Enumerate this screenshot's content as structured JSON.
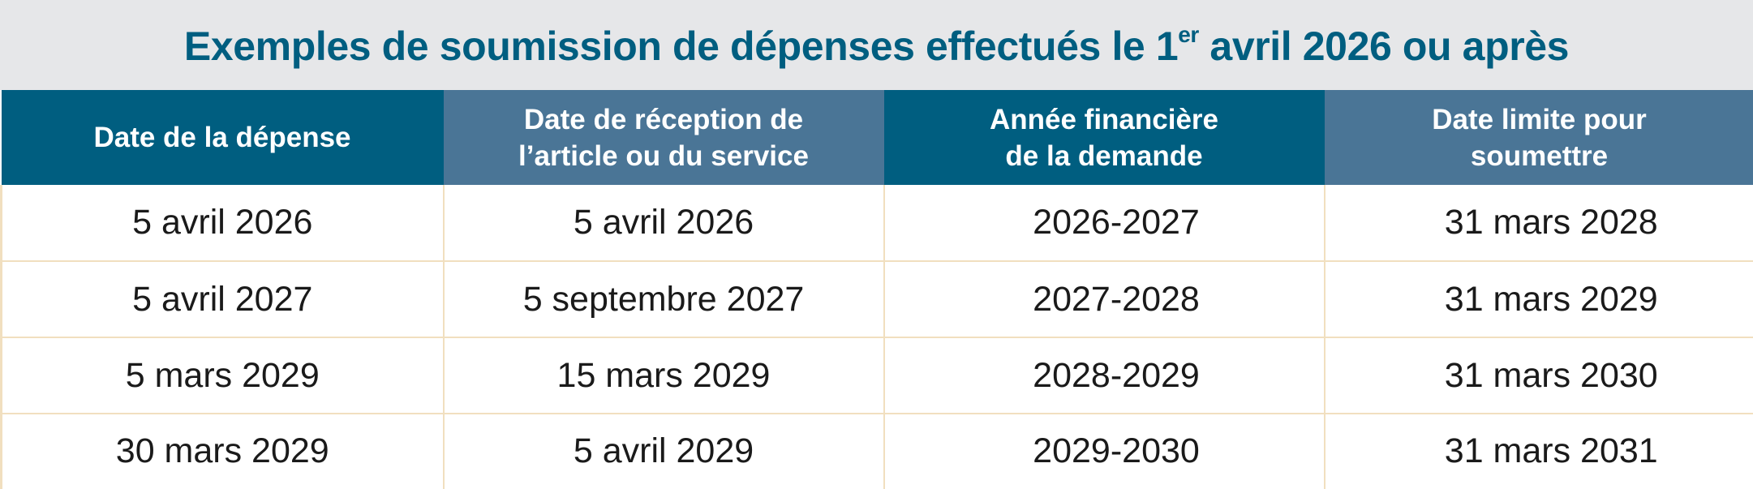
{
  "title": {
    "before": "Exemples de soumission de dépenses effectués le 1",
    "superscript": "er",
    "after": " avril 2026 ou après"
  },
  "columns": [
    {
      "lines": [
        "Date de la dépense"
      ]
    },
    {
      "lines": [
        "Date de réception de",
        "l’article ou du service"
      ]
    },
    {
      "lines": [
        "Année financière",
        "de la demande"
      ]
    },
    {
      "lines": [
        "Date limite pour",
        "soumettre"
      ]
    }
  ],
  "rows": [
    [
      "5 avril 2026",
      "5 avril 2026",
      "2026-2027",
      "31 mars 2028"
    ],
    [
      "5 avril 2027",
      "5 septembre 2027",
      "2027-2028",
      "31 mars 2029"
    ],
    [
      "5 mars 2029",
      "15 mars 2029",
      "2028-2029",
      "31 mars 2030"
    ],
    [
      "30 mars 2029",
      "5 avril 2029",
      "2029-2030",
      "31 mars 2031"
    ]
  ],
  "colors": {
    "title_text": "#005e80",
    "title_background": "#e6e7e9",
    "header_dark": "#005e80",
    "header_mid": "#4a7596",
    "grid_lines": "#f1dfbf"
  }
}
